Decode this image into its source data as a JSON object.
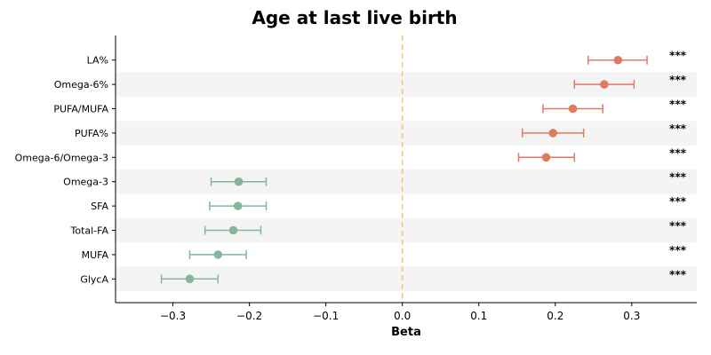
{
  "chart_data": {
    "type": "scatter",
    "subtype": "forest-plot",
    "title": "Age at last live birth",
    "xlabel": "Beta",
    "ylabel": "",
    "xlim": [
      -0.375,
      0.385
    ],
    "xticks": [
      -0.3,
      -0.2,
      -0.1,
      0.0,
      0.1,
      0.2,
      0.3
    ],
    "xtick_labels": [
      "−0.3",
      "−0.2",
      "−0.1",
      "0.0",
      "0.1",
      "0.2",
      "0.3"
    ],
    "reference_line": 0.0,
    "grid": false,
    "row_striping": true,
    "colors": {
      "positive": "#E07B62",
      "negative": "#86B59B",
      "reference": "#F5C87A",
      "stripe": "#F4F4F4"
    },
    "rows": [
      {
        "label": "LA%",
        "beta": 0.282,
        "ci_low": 0.243,
        "ci_high": 0.32,
        "significance": "***"
      },
      {
        "label": "Omega-6%",
        "beta": 0.264,
        "ci_low": 0.225,
        "ci_high": 0.303,
        "significance": "***"
      },
      {
        "label": "PUFA/MUFA",
        "beta": 0.223,
        "ci_low": 0.184,
        "ci_high": 0.262,
        "significance": "***"
      },
      {
        "label": "PUFA%",
        "beta": 0.197,
        "ci_low": 0.157,
        "ci_high": 0.237,
        "significance": "***"
      },
      {
        "label": "Omega-6/Omega-3",
        "beta": 0.188,
        "ci_low": 0.152,
        "ci_high": 0.225,
        "significance": "***"
      },
      {
        "label": "Omega-3",
        "beta": -0.214,
        "ci_low": -0.25,
        "ci_high": -0.178,
        "significance": "***"
      },
      {
        "label": "SFA",
        "beta": -0.215,
        "ci_low": -0.252,
        "ci_high": -0.178,
        "significance": "***"
      },
      {
        "label": "Total-FA",
        "beta": -0.221,
        "ci_low": -0.258,
        "ci_high": -0.185,
        "significance": "***"
      },
      {
        "label": "MUFA",
        "beta": -0.241,
        "ci_low": -0.278,
        "ci_high": -0.204,
        "significance": "***"
      },
      {
        "label": "GlycA",
        "beta": -0.278,
        "ci_low": -0.315,
        "ci_high": -0.241,
        "significance": "***"
      }
    ]
  }
}
